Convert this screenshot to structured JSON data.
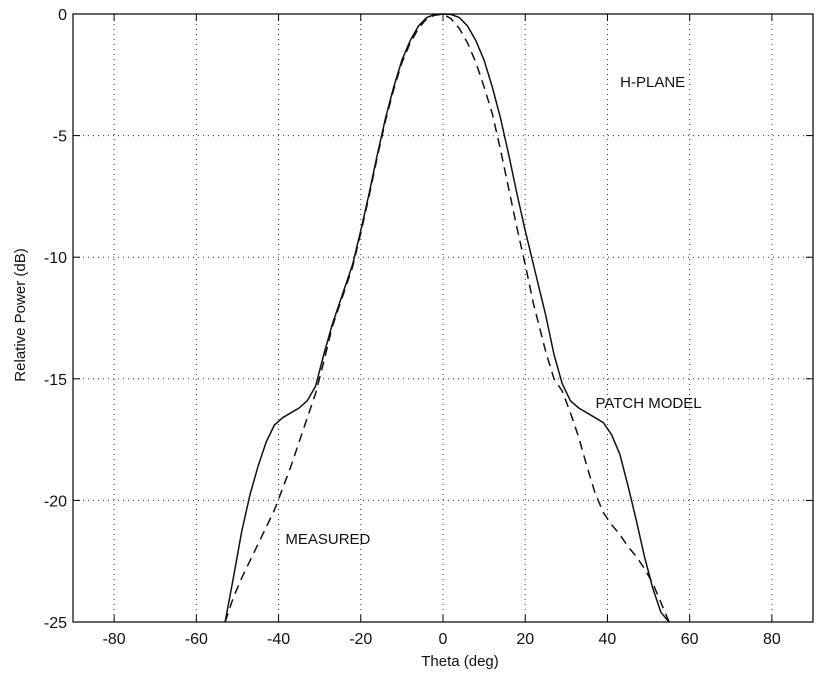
{
  "chart_data": {
    "type": "line",
    "title": "",
    "xlabel": "Theta (deg)",
    "ylabel": "Relative Power (dB)",
    "xlim": [
      -90,
      90
    ],
    "ylim": [
      -25,
      0
    ],
    "x_ticks": [
      -80,
      -60,
      -40,
      -20,
      0,
      20,
      40,
      60,
      80
    ],
    "y_ticks": [
      0,
      -5,
      -10,
      -15,
      -20,
      -25
    ],
    "grid": true,
    "legend": "none",
    "colors": {
      "line": "#111111",
      "grid": "#333333",
      "frame": "#000000"
    },
    "series": [
      {
        "style": "solid",
        "x": [
          -53,
          -51,
          -49,
          -47,
          -45,
          -43,
          -41,
          -39,
          -37,
          -35,
          -33,
          -31,
          -29,
          -27,
          -25,
          -22,
          -20,
          -18,
          -16,
          -14,
          -12,
          -10,
          -8,
          -6,
          -4,
          -2,
          0,
          2,
          4,
          6,
          8,
          10,
          12,
          14,
          16,
          18,
          20,
          22,
          25,
          27,
          29,
          31,
          33,
          35,
          37,
          39,
          41,
          43,
          45,
          47,
          49,
          51,
          53,
          55
        ],
        "y": [
          -25,
          -23.2,
          -21.3,
          -19.8,
          -18.6,
          -17.6,
          -16.9,
          -16.6,
          -16.4,
          -16.2,
          -15.9,
          -15.3,
          -14.0,
          -12.8,
          -11.8,
          -10.3,
          -8.9,
          -7.4,
          -5.8,
          -4.3,
          -3.0,
          -1.9,
          -1.1,
          -0.5,
          -0.15,
          -0.02,
          0,
          -0.02,
          -0.15,
          -0.5,
          -1.1,
          -1.9,
          -3.0,
          -4.3,
          -5.8,
          -7.4,
          -8.9,
          -10.3,
          -12.4,
          -14.0,
          -15.2,
          -15.9,
          -16.2,
          -16.4,
          -16.6,
          -16.8,
          -17.3,
          -18.1,
          -19.4,
          -20.8,
          -22.3,
          -23.6,
          -24.6,
          -25
        ]
      },
      {
        "style": "dashed",
        "x": [
          -53,
          -51,
          -49,
          -47,
          -45,
          -43,
          -41,
          -39,
          -37,
          -35,
          -33,
          -31,
          -29,
          -27,
          -25,
          -22,
          -20,
          -18,
          -16,
          -14,
          -12,
          -10,
          -8,
          -6,
          -4,
          -2,
          0,
          2,
          4,
          6,
          8,
          10,
          12,
          14,
          16,
          18,
          20,
          22,
          25,
          27,
          29,
          31,
          33,
          35,
          37,
          39,
          41,
          43,
          45,
          47,
          49,
          51,
          53,
          55
        ],
        "y": [
          -25,
          -24.0,
          -23.2,
          -22.5,
          -21.8,
          -21.1,
          -20.4,
          -19.5,
          -18.6,
          -17.6,
          -16.6,
          -15.6,
          -14.3,
          -12.9,
          -11.9,
          -10.4,
          -9.0,
          -7.5,
          -5.9,
          -4.4,
          -3.1,
          -2.0,
          -1.2,
          -0.6,
          -0.2,
          -0.05,
          0,
          -0.2,
          -0.6,
          -1.2,
          -2.0,
          -3.0,
          -4.1,
          -5.6,
          -7.2,
          -8.8,
          -10.3,
          -11.9,
          -13.9,
          -15.0,
          -15.5,
          -16.4,
          -17.4,
          -18.6,
          -19.7,
          -20.5,
          -21.0,
          -21.4,
          -21.9,
          -22.3,
          -22.8,
          -23.4,
          -24.2,
          -25
        ]
      }
    ],
    "annotations": [
      {
        "text": "H-PLANE",
        "x": 51,
        "y": -3
      },
      {
        "text": "PATCH MODEL",
        "x": 50,
        "y": -16.2
      },
      {
        "text": "MEASURED",
        "x": -28,
        "y": -21.8
      }
    ]
  }
}
